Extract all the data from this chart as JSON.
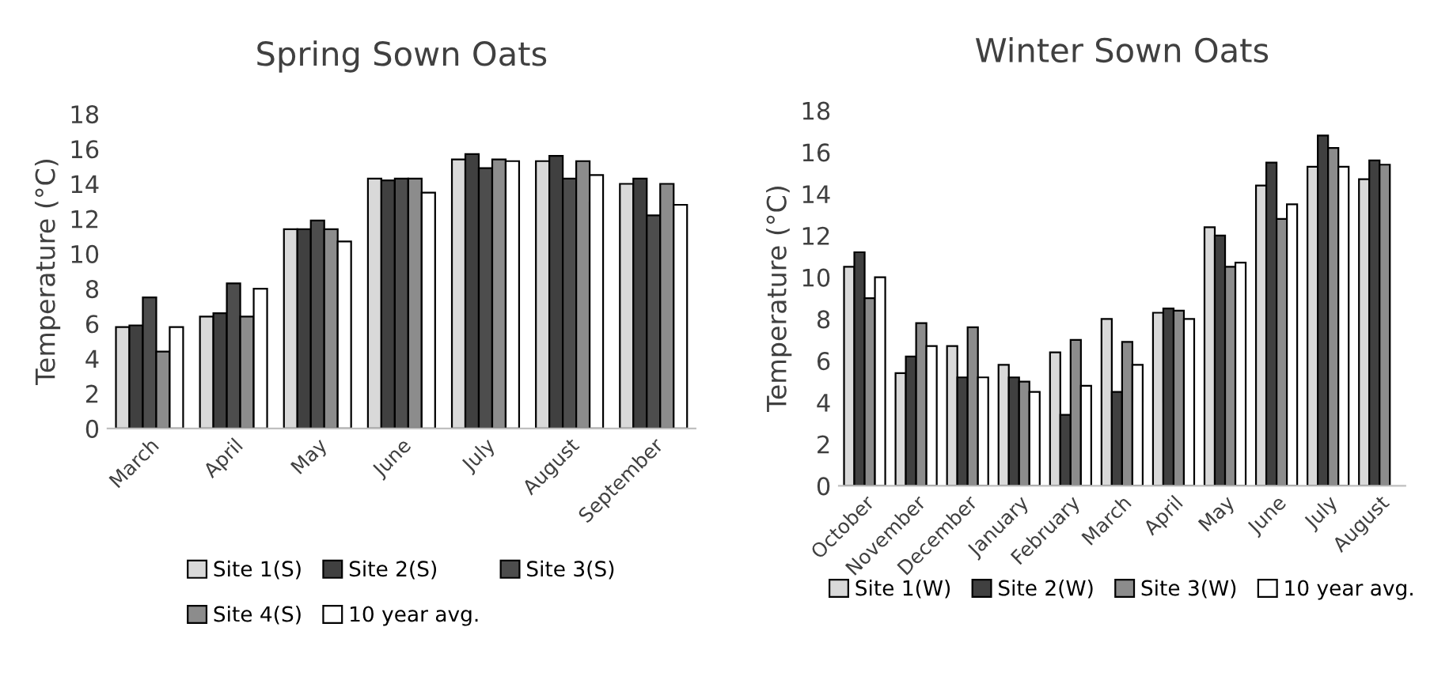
{
  "chart_data": [
    {
      "type": "bar",
      "title": "Spring Sown Oats",
      "ylabel": "Temperature (°C)",
      "categories": [
        "March",
        "April",
        "May",
        "June",
        "July",
        "August",
        "September"
      ],
      "ylim": [
        0,
        18
      ],
      "yticks": [
        0,
        2,
        4,
        6,
        8,
        10,
        12,
        14,
        16,
        18
      ],
      "grid": false,
      "legend": "bottom",
      "series": [
        {
          "name": "Site 1(S)",
          "color": "#d9d9d9",
          "values": [
            5.8,
            6.4,
            11.4,
            14.3,
            15.4,
            15.3,
            14.0
          ]
        },
        {
          "name": "Site 2(S)",
          "color": "#404040",
          "values": [
            5.9,
            6.6,
            11.4,
            14.2,
            15.7,
            15.6,
            14.3
          ]
        },
        {
          "name": "Site 3(S)",
          "color": "#4d4d4d",
          "values": [
            7.5,
            8.3,
            11.9,
            14.3,
            14.9,
            14.3,
            12.2
          ]
        },
        {
          "name": "Site 4(S)",
          "color": "#8c8c8c",
          "values": [
            4.4,
            6.4,
            11.4,
            14.3,
            15.4,
            15.3,
            14.0
          ]
        },
        {
          "name": "10 year avg.",
          "color": "#ffffff",
          "values": [
            5.8,
            8.0,
            10.7,
            13.5,
            15.3,
            14.5,
            12.8
          ]
        }
      ]
    },
    {
      "type": "bar",
      "title": "Winter Sown Oats",
      "ylabel": "Temperature (°C)",
      "categories": [
        "October",
        "November",
        "December",
        "January",
        "February",
        "March",
        "April",
        "May",
        "June",
        "July",
        "August"
      ],
      "ylim": [
        0,
        18
      ],
      "yticks": [
        0,
        2,
        4,
        6,
        8,
        10,
        12,
        14,
        16,
        18
      ],
      "grid": false,
      "legend": "bottom",
      "series": [
        {
          "name": "Site 1(W)",
          "color": "#d9d9d9",
          "values": [
            10.5,
            5.4,
            6.7,
            5.8,
            6.4,
            8.0,
            8.3,
            12.4,
            14.4,
            15.3,
            14.7
          ]
        },
        {
          "name": "Site 2(W)",
          "color": "#404040",
          "values": [
            11.2,
            6.2,
            5.2,
            5.2,
            3.4,
            4.5,
            8.5,
            12.0,
            15.5,
            16.8,
            15.6
          ]
        },
        {
          "name": "Site 3(W)",
          "color": "#8c8c8c",
          "values": [
            9.0,
            7.8,
            7.6,
            5.0,
            7.0,
            6.9,
            8.4,
            10.5,
            12.8,
            16.2,
            15.4
          ]
        },
        {
          "name": "10 year avg.",
          "color": "#ffffff",
          "values": [
            10.0,
            6.7,
            5.2,
            4.5,
            4.8,
            5.8,
            8.0,
            10.7,
            13.5,
            15.3,
            null
          ]
        }
      ]
    }
  ]
}
